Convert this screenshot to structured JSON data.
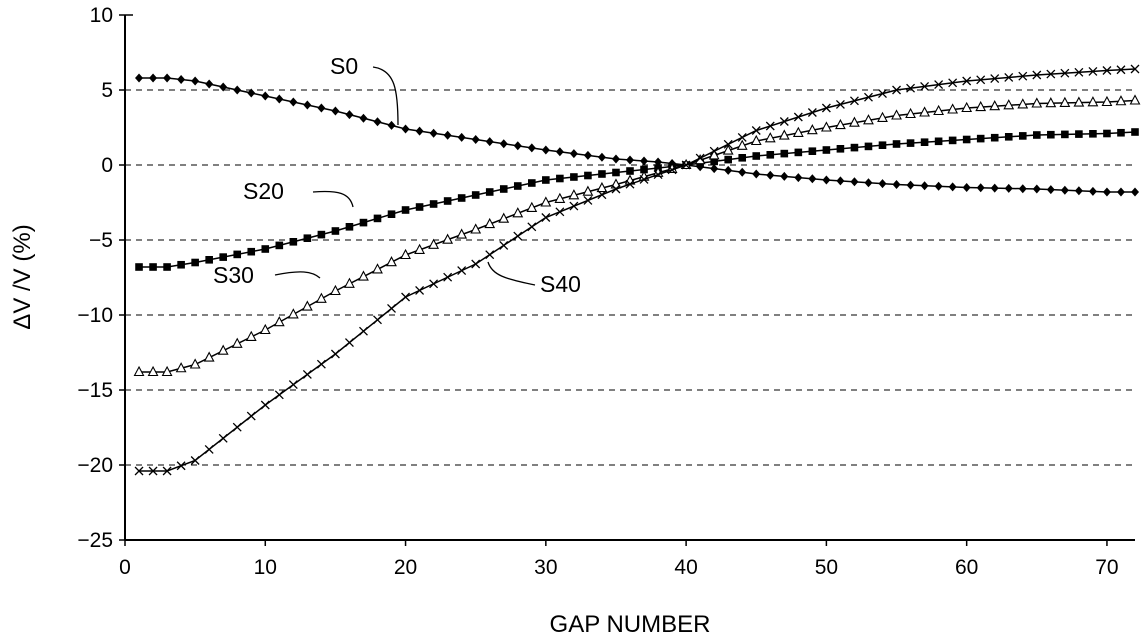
{
  "chart_data": {
    "type": "line",
    "xlabel": "GAP NUMBER",
    "ylabel": "ΔV /V (%)",
    "xlim": [
      0,
      72
    ],
    "ylim": [
      -25,
      10
    ],
    "xticks": [
      "0",
      "10",
      "20",
      "30",
      "40",
      "50",
      "60",
      "70"
    ],
    "yticks": [
      "10",
      "5",
      "0",
      "−5",
      "−10",
      "−15",
      "−20",
      "−25"
    ],
    "grid": "horizontal dashed",
    "series": [
      {
        "name": "S0",
        "marker": "diamond",
        "points": [
          [
            1,
            5.8
          ],
          [
            3,
            5.8
          ],
          [
            5,
            5.6
          ],
          [
            10,
            4.6
          ],
          [
            15,
            3.6
          ],
          [
            20,
            2.4
          ],
          [
            25,
            1.7
          ],
          [
            30,
            1.0
          ],
          [
            35,
            0.4
          ],
          [
            38,
            0.2
          ],
          [
            40,
            0.0
          ],
          [
            45,
            -0.6
          ],
          [
            50,
            -1.0
          ],
          [
            55,
            -1.3
          ],
          [
            60,
            -1.5
          ],
          [
            65,
            -1.6
          ],
          [
            70,
            -1.8
          ],
          [
            72,
            -1.8
          ]
        ]
      },
      {
        "name": "S20",
        "marker": "square",
        "points": [
          [
            1,
            -6.8
          ],
          [
            3,
            -6.8
          ],
          [
            5,
            -6.5
          ],
          [
            10,
            -5.6
          ],
          [
            15,
            -4.4
          ],
          [
            20,
            -3.0
          ],
          [
            25,
            -2.0
          ],
          [
            30,
            -1.0
          ],
          [
            35,
            -0.5
          ],
          [
            40,
            0.0
          ],
          [
            45,
            0.6
          ],
          [
            50,
            1.0
          ],
          [
            55,
            1.4
          ],
          [
            60,
            1.7
          ],
          [
            65,
            2.0
          ],
          [
            70,
            2.1
          ],
          [
            72,
            2.2
          ]
        ]
      },
      {
        "name": "S30",
        "marker": "triangle",
        "points": [
          [
            1,
            -13.8
          ],
          [
            3,
            -13.8
          ],
          [
            5,
            -13.3
          ],
          [
            10,
            -11.0
          ],
          [
            15,
            -8.4
          ],
          [
            20,
            -6.0
          ],
          [
            25,
            -4.3
          ],
          [
            30,
            -2.5
          ],
          [
            35,
            -1.3
          ],
          [
            40,
            0.0
          ],
          [
            45,
            1.6
          ],
          [
            50,
            2.5
          ],
          [
            55,
            3.3
          ],
          [
            60,
            3.8
          ],
          [
            65,
            4.1
          ],
          [
            70,
            4.2
          ],
          [
            72,
            4.3
          ]
        ]
      },
      {
        "name": "S40",
        "marker": "cross",
        "points": [
          [
            1,
            -20.4
          ],
          [
            3,
            -20.4
          ],
          [
            5,
            -19.7
          ],
          [
            10,
            -16.0
          ],
          [
            15,
            -12.6
          ],
          [
            20,
            -8.8
          ],
          [
            25,
            -6.6
          ],
          [
            30,
            -3.5
          ],
          [
            35,
            -1.6
          ],
          [
            40,
            0.0
          ],
          [
            45,
            2.3
          ],
          [
            50,
            3.8
          ],
          [
            55,
            5.0
          ],
          [
            60,
            5.6
          ],
          [
            65,
            6.0
          ],
          [
            70,
            6.3
          ],
          [
            72,
            6.4
          ]
        ]
      }
    ],
    "annotations": [
      "S0",
      "S20",
      "S30",
      "S40"
    ]
  }
}
